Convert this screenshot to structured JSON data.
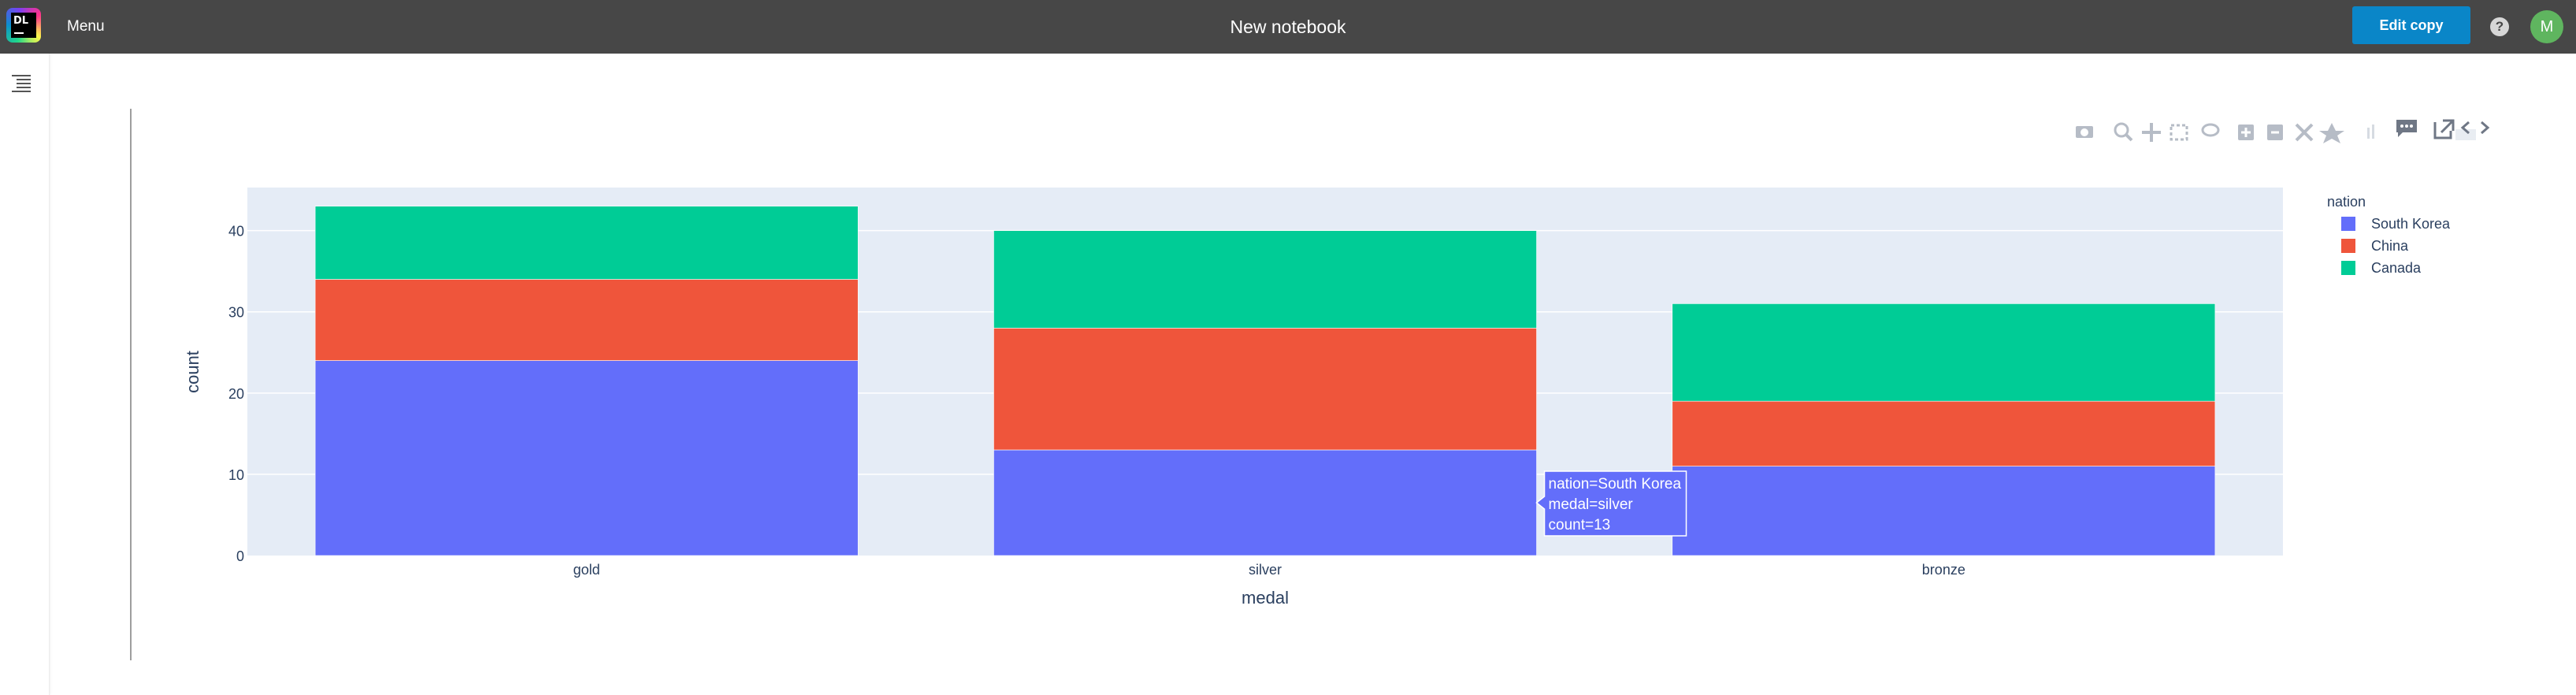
{
  "header": {
    "menu_label": "Menu",
    "title": "New notebook",
    "edit_copy_label": "Edit copy",
    "help_symbol": "?",
    "avatar_initial": "M"
  },
  "colors": {
    "topbar": "#474747",
    "accent": "#0a86c8",
    "South Korea": "#636efa",
    "China": "#ef553b",
    "Canada": "#00cc96",
    "plot_bg": "#e5ecf6"
  },
  "modebar_icons": [
    "camera-icon",
    "zoom-icon",
    "pan-icon",
    "box-select-icon",
    "lasso-icon",
    "zoom-in-icon",
    "zoom-out-icon",
    "autoscale-icon",
    "reset-axes-icon",
    "plotly-logo-icon",
    "comment-icon",
    "open-external-icon",
    "code-icon"
  ],
  "tooltip": {
    "line1": "nation=South Korea",
    "line2": "medal=silver",
    "line3": "count=13"
  },
  "chart_data": {
    "type": "bar",
    "barmode": "stack",
    "categories": [
      "gold",
      "silver",
      "bronze"
    ],
    "series": [
      {
        "name": "South Korea",
        "values": [
          24,
          13,
          11
        ]
      },
      {
        "name": "China",
        "values": [
          10,
          15,
          8
        ]
      },
      {
        "name": "Canada",
        "values": [
          9,
          12,
          12
        ]
      }
    ],
    "xlabel": "medal",
    "ylabel": "count",
    "ylim": [
      0,
      45.3
    ],
    "yticks": [
      0,
      10,
      20,
      30,
      40
    ],
    "legend_title": "nation",
    "legend_position": "top-right",
    "grid": true
  }
}
